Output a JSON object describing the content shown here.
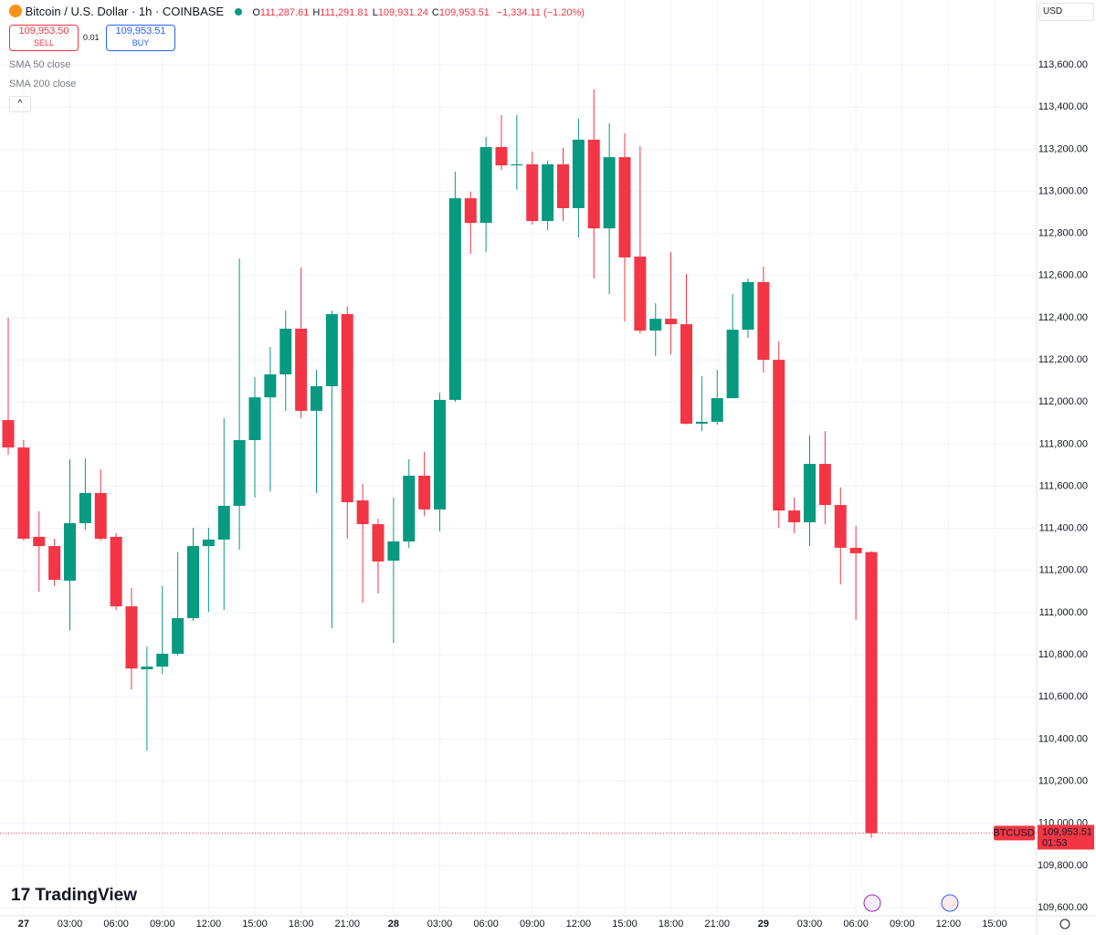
{
  "header": {
    "title": "Bitcoin / U.S. Dollar · 1h · COINBASE",
    "ohlc": [
      {
        "key": "O",
        "value": "111,287.61"
      },
      {
        "key": "H",
        "value": "111,291.81"
      },
      {
        "key": "L",
        "value": "109,931.24"
      },
      {
        "key": "C",
        "value": "109,953.51"
      }
    ],
    "change": "−1,334.11 (−1.20%)",
    "sell_price": "109,953.50",
    "sell_label": "SELL",
    "spread": "0.01",
    "buy_price": "109,953.51",
    "buy_label": "BUY",
    "indicators": [
      "SMA 50 close",
      "SMA 200 close"
    ],
    "currency": "USD",
    "brand": "TradingView"
  },
  "chart_data": {
    "type": "candlestick",
    "up_color": "#089981",
    "down_color": "#f23645",
    "grid": true,
    "categories": [
      null,
      "27",
      null,
      null,
      "03:00",
      null,
      null,
      "06:00",
      null,
      null,
      "09:00",
      null,
      null,
      "12:00",
      null,
      null,
      "15:00",
      null,
      null,
      "18:00",
      null,
      null,
      "21:00",
      null,
      null,
      "28",
      null,
      null,
      "03:00",
      null,
      null,
      "06:00",
      null,
      null,
      "09:00",
      null,
      null,
      "12:00",
      null,
      null,
      "15:00",
      null,
      null,
      "18:00",
      null,
      null,
      "21:00",
      null,
      null,
      "29",
      null,
      null,
      "03:00",
      null,
      null,
      "06:00",
      null,
      null,
      "09:00",
      null,
      null,
      "12:00",
      null,
      null,
      "15:00"
    ],
    "open": [
      111914,
      111784,
      111360,
      111316,
      111152,
      111425,
      111568,
      111360,
      111030,
      110731,
      110744,
      110805,
      110974,
      111316,
      111347,
      111507,
      111819,
      112022,
      112131,
      112348,
      111958,
      112075,
      112417,
      111533,
      111420,
      111247,
      111338,
      111650,
      111490,
      112010,
      112967,
      112850,
      113210,
      113123,
      113128,
      112859,
      113128,
      112920,
      113245,
      112824,
      113162,
      112690,
      112339,
      112395,
      112369,
      111897,
      111906,
      112018,
      112343,
      112569,
      112200,
      111485,
      111429,
      111706,
      111511,
      111308,
      111287.61,
      null,
      null,
      null,
      null,
      null,
      null,
      null,
      null
    ],
    "high": [
      112400,
      111819,
      111481,
      111351,
      111728,
      111732,
      111680,
      111377,
      111117,
      110839,
      111126,
      111286,
      111403,
      111403,
      111923,
      112681,
      112118,
      112261,
      112434,
      112638,
      112153,
      112434,
      112452,
      111611,
      111446,
      111546,
      111728,
      111763,
      112044,
      113093,
      112998,
      113258,
      113362,
      113362,
      113188,
      113145,
      113206,
      113344,
      113483,
      113323,
      113275,
      113214,
      112469,
      112712,
      112608,
      112122,
      112153,
      112512,
      112586,
      112642,
      112287,
      111546,
      111841,
      111862,
      111594,
      111412,
      111291.81,
      null,
      null,
      null,
      null,
      null,
      null,
      null,
      null
    ],
    "low": [
      111750,
      111342,
      111100,
      111126,
      110917,
      111394,
      111342,
      111013,
      110636,
      110345,
      110709,
      110796,
      110961,
      111004,
      111013,
      111299,
      111546,
      111576,
      111958,
      111923,
      111568,
      110926,
      111351,
      111048,
      111091,
      110857,
      111308,
      111459,
      111386,
      112001,
      112703,
      112712,
      113102,
      113006,
      112842,
      112816,
      112859,
      112781,
      112586,
      112512,
      112382,
      112326,
      112218,
      112226,
      111893,
      111862,
      111893,
      112018,
      112304,
      112140,
      111403,
      111377,
      111316,
      111420,
      111134,
      110965,
      109931.24,
      null,
      null,
      null,
      null,
      null,
      null,
      null,
      null
    ],
    "close": [
      111784,
      111351,
      111316,
      111156,
      111425,
      111568,
      111351,
      111030,
      110735,
      110744,
      110805,
      110974,
      111316,
      111347,
      111507,
      111819,
      112022,
      112131,
      112348,
      111958,
      112075,
      112417,
      111524,
      111420,
      111243,
      111338,
      111650,
      111490,
      112010,
      112967,
      112850,
      113210,
      113123,
      113128,
      112859,
      113128,
      112920,
      113245,
      112824,
      113162,
      112686,
      112339,
      112395,
      112369,
      111897,
      111906,
      112018,
      112343,
      112569,
      112200,
      111485,
      111429,
      111706,
      111511,
      111308,
      111282,
      109953.51,
      null,
      null,
      null,
      null,
      null,
      null,
      null,
      null
    ],
    "ylim": [
      109561,
      113908
    ],
    "yticks": [
      {
        "value": 109600,
        "label": "109,600.00"
      },
      {
        "value": 109800,
        "label": "109,800.00"
      },
      {
        "value": 110000,
        "label": "110,000.00"
      },
      {
        "value": 110200,
        "label": "110,200.00"
      },
      {
        "value": 110400,
        "label": "110,400.00"
      },
      {
        "value": 110600,
        "label": "110,600.00"
      },
      {
        "value": 110800,
        "label": "110,800.00"
      },
      {
        "value": 111000,
        "label": "111,000.00"
      },
      {
        "value": 111200,
        "label": "111,200.00"
      },
      {
        "value": 111400,
        "label": "111,400.00"
      },
      {
        "value": 111600,
        "label": "111,600.00"
      },
      {
        "value": 111800,
        "label": "111,800.00"
      },
      {
        "value": 112000,
        "label": "112,000.00"
      },
      {
        "value": 112200,
        "label": "112,200.00"
      },
      {
        "value": 112400,
        "label": "112,400.00"
      },
      {
        "value": 112600,
        "label": "112,600.00"
      },
      {
        "value": 112800,
        "label": "112,800.00"
      },
      {
        "value": 113000,
        "label": "113,000.00"
      },
      {
        "value": 113200,
        "label": "113,200.00"
      },
      {
        "value": 113400,
        "label": "113,400.00"
      },
      {
        "value": 113600,
        "label": "113,600.00"
      }
    ],
    "last_price": {
      "value": 109953.51,
      "label": "109,953.51"
    },
    "symbol": "BTCUSD",
    "countdown": "01:53"
  }
}
